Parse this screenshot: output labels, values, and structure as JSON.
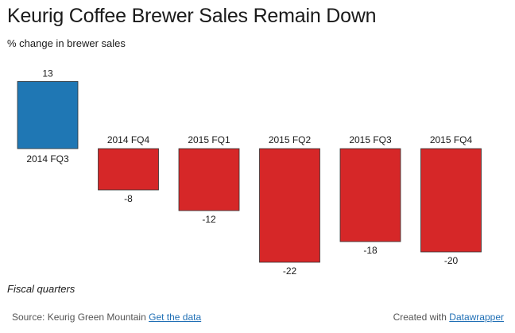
{
  "header": {
    "title": "Keurig Coffee Brewer Sales Remain Down",
    "subtitle": "% change in brewer sales"
  },
  "notes": {
    "x_note": "Fiscal quarters"
  },
  "footer": {
    "source_prefix": "Source: Keurig Green Mountain",
    "get_data_label": "Get the data",
    "created_prefix": "Created with",
    "datawrapper_label": "Datawrapper"
  },
  "colors": {
    "positive": "#1f77b4",
    "negative": "#d62728",
    "link": "#1f6fb5"
  },
  "chart_data": {
    "type": "bar",
    "title": "Keurig Coffee Brewer Sales Remain Down",
    "subtitle": "% change in brewer sales",
    "categories": [
      "2014 FQ3",
      "2014 FQ4",
      "2015 FQ1",
      "2015 FQ2",
      "2015 FQ3",
      "2015 FQ4"
    ],
    "values": [
      13,
      -8,
      -12,
      -22,
      -18,
      -20
    ],
    "xlabel": "Fiscal quarters",
    "ylabel": "",
    "grid": false,
    "legend": "none"
  }
}
